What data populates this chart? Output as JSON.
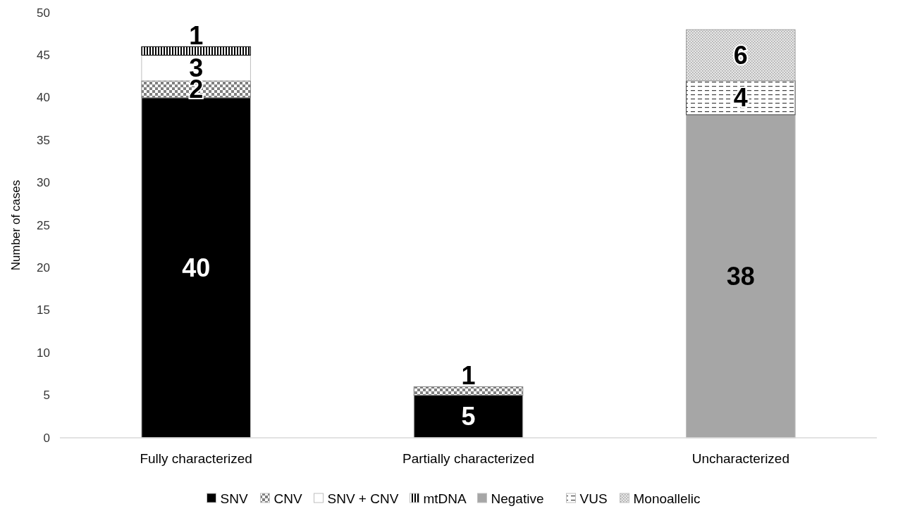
{
  "chart_data": {
    "type": "bar",
    "stacked": true,
    "ylabel": "Number of cases",
    "categories": [
      "Fully characterized",
      "Partially characterized",
      "Uncharacterized"
    ],
    "series": [
      {
        "name": "SNV",
        "color": "#000000",
        "values": [
          40,
          5,
          null
        ]
      },
      {
        "name": "CNV",
        "color": "#808080",
        "values": [
          2,
          1,
          null
        ]
      },
      {
        "name": "SNV + CNV",
        "color": "#ffffff",
        "values": [
          3,
          null,
          null
        ]
      },
      {
        "name": "mtDNA",
        "color": "#000000",
        "values": [
          1,
          null,
          null
        ]
      },
      {
        "name": "Negative",
        "color": "#a6a6a6",
        "values": [
          null,
          null,
          38
        ]
      },
      {
        "name": "VUS",
        "color": "#404040",
        "values": [
          null,
          null,
          4
        ]
      },
      {
        "name": "Monoallelic",
        "color": "#a0a0a0",
        "values": [
          null,
          null,
          6
        ]
      }
    ],
    "ylim": [
      0,
      50
    ],
    "yticks": [
      0,
      5,
      10,
      15,
      20,
      25,
      30,
      35,
      40,
      45,
      50
    ],
    "data_labels": true,
    "legend": "bottom",
    "grid": false
  }
}
